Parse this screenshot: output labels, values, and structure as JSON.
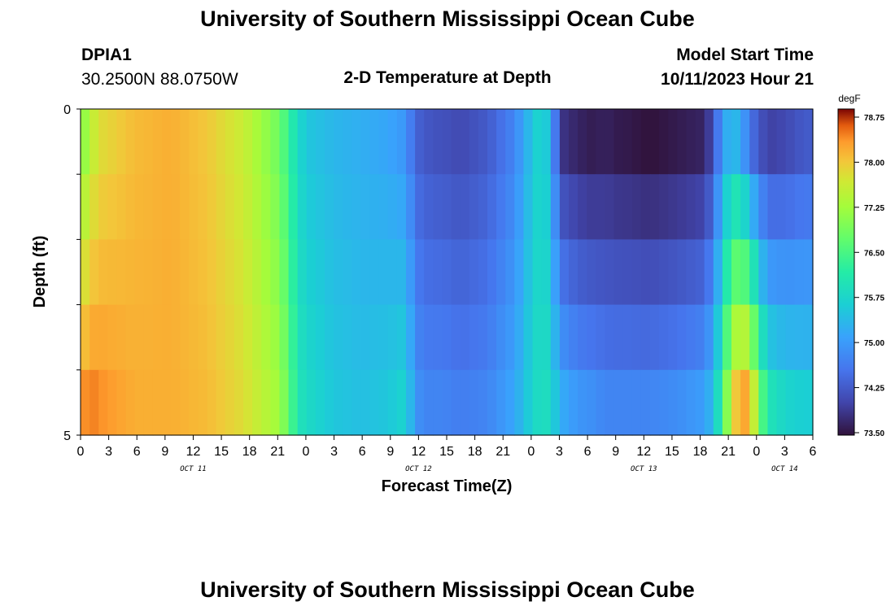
{
  "header": {
    "title": "University of Southern Mississippi Ocean Cube",
    "station_id": "DPIA1",
    "station_coords": "30.2500N  88.0750W",
    "plot_title": "2-D Temperature at Depth",
    "model_start_label": "Model Start Time",
    "model_start_value": "10/11/2023 Hour 21"
  },
  "footer": {
    "title": "University of Southern Mississippi Ocean Cube"
  },
  "chart_data": {
    "type": "heatmap",
    "title": "2-D Temperature at Depth",
    "xlabel": "Forecast Time(Z)",
    "ylabel": "Depth (ft)",
    "y_tick_labels": [
      "0",
      "5"
    ],
    "ylim": [
      0,
      5
    ],
    "x_tick_labels": [
      "0",
      "3",
      "6",
      "9",
      "12",
      "15",
      "18",
      "21",
      "0",
      "3",
      "6",
      "9",
      "12",
      "15",
      "18",
      "21",
      "0",
      "3",
      "6",
      "9",
      "12",
      "15",
      "18",
      "21",
      "0",
      "3",
      "6"
    ],
    "day_labels": [
      "OCT 11",
      "OCT 12",
      "OCT 13",
      "OCT 14"
    ],
    "colorbar": {
      "unit": "degF",
      "tick_labels": [
        "78.75",
        "78.00",
        "77.25",
        "76.50",
        "75.75",
        "75.00",
        "74.25",
        "73.50"
      ],
      "min": 73.5,
      "max": 79.0
    },
    "depth_rows": 5,
    "hours_per_column": 1,
    "forecast_hours": 81,
    "temperature_profile": {
      "description_hours": [
        0,
        1,
        2,
        6,
        10,
        14,
        18,
        22,
        23,
        24,
        25,
        28,
        31,
        34,
        36,
        37,
        38,
        39,
        40,
        42,
        45,
        48,
        50,
        51,
        52,
        53,
        55,
        57,
        58,
        59,
        60,
        63,
        66,
        69,
        70,
        71,
        72,
        73,
        74,
        75,
        76,
        78,
        80,
        81
      ],
      "surface_degF": [
        77.0,
        77.5,
        77.9,
        78.2,
        78.3,
        78.1,
        77.7,
        76.9,
        76.4,
        75.9,
        75.6,
        75.4,
        75.3,
        75.2,
        75.0,
        74.4,
        74.3,
        74.2,
        74.2,
        74.1,
        74.3,
        74.8,
        75.6,
        75.9,
        75.4,
        73.9,
        73.7,
        73.6,
        73.7,
        73.6,
        73.6,
        73.5,
        73.6,
        73.7,
        74.2,
        75.1,
        75.5,
        75.3,
        74.6,
        74.3,
        74.0,
        74.1,
        74.3,
        74.3
      ],
      "bottom_degF": [
        78.4,
        78.6,
        78.5,
        78.3,
        78.3,
        78.2,
        77.9,
        77.3,
        76.8,
        76.1,
        75.9,
        75.6,
        75.5,
        75.6,
        75.8,
        75.0,
        74.8,
        74.8,
        74.8,
        74.7,
        74.8,
        75.2,
        75.8,
        76.0,
        75.9,
        75.3,
        75.0,
        74.9,
        74.8,
        74.8,
        74.8,
        74.8,
        74.9,
        75.1,
        75.5,
        76.4,
        77.8,
        78.4,
        78.3,
        77.0,
        76.1,
        75.8,
        75.7,
        75.7
      ]
    }
  }
}
